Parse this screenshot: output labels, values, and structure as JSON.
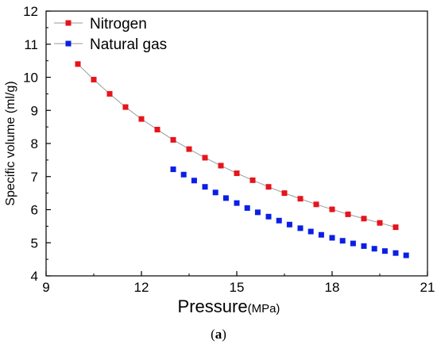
{
  "chart_data": {
    "type": "line",
    "title": "",
    "xlabel": "Pressure",
    "xlabel_unit": "(MPa)",
    "ylabel": "Specific volume (ml/g)",
    "xlim": [
      9,
      21
    ],
    "ylim": [
      4,
      12
    ],
    "xticks": [
      9,
      12,
      15,
      18,
      21
    ],
    "yticks": [
      4,
      5,
      6,
      7,
      8,
      9,
      10,
      11,
      12
    ],
    "grid": false,
    "legend_position": "top-left",
    "series": [
      {
        "name": "Nitrogen",
        "color": "#e8131b",
        "marker": "square",
        "line": true,
        "x": [
          10,
          10.5,
          11,
          11.5,
          12,
          12.5,
          13,
          13.5,
          14,
          14.5,
          15,
          15.5,
          16,
          16.5,
          17,
          17.5,
          18,
          18.5,
          19,
          19.5,
          20
        ],
        "y": [
          10.4,
          9.93,
          9.5,
          9.1,
          8.74,
          8.42,
          8.11,
          7.83,
          7.57,
          7.33,
          7.1,
          6.89,
          6.69,
          6.5,
          6.33,
          6.16,
          6.01,
          5.86,
          5.73,
          5.6,
          5.47
        ]
      },
      {
        "name": "Natural gas",
        "color": "#0a1fe6",
        "marker": "square",
        "line": false,
        "x": [
          13,
          13.33,
          13.66,
          14,
          14.33,
          14.66,
          15,
          15.33,
          15.66,
          16,
          16.33,
          16.66,
          17,
          17.33,
          17.66,
          18,
          18.33,
          18.66,
          19,
          19.33,
          19.66,
          20,
          20.33
        ],
        "y": [
          7.22,
          7.06,
          6.88,
          6.69,
          6.52,
          6.35,
          6.2,
          6.05,
          5.92,
          5.79,
          5.67,
          5.55,
          5.44,
          5.34,
          5.24,
          5.15,
          5.06,
          4.98,
          4.9,
          4.82,
          4.75,
          4.69,
          4.62
        ]
      }
    ]
  },
  "caption": {
    "open": "(",
    "letter": "a",
    "close": ")"
  }
}
